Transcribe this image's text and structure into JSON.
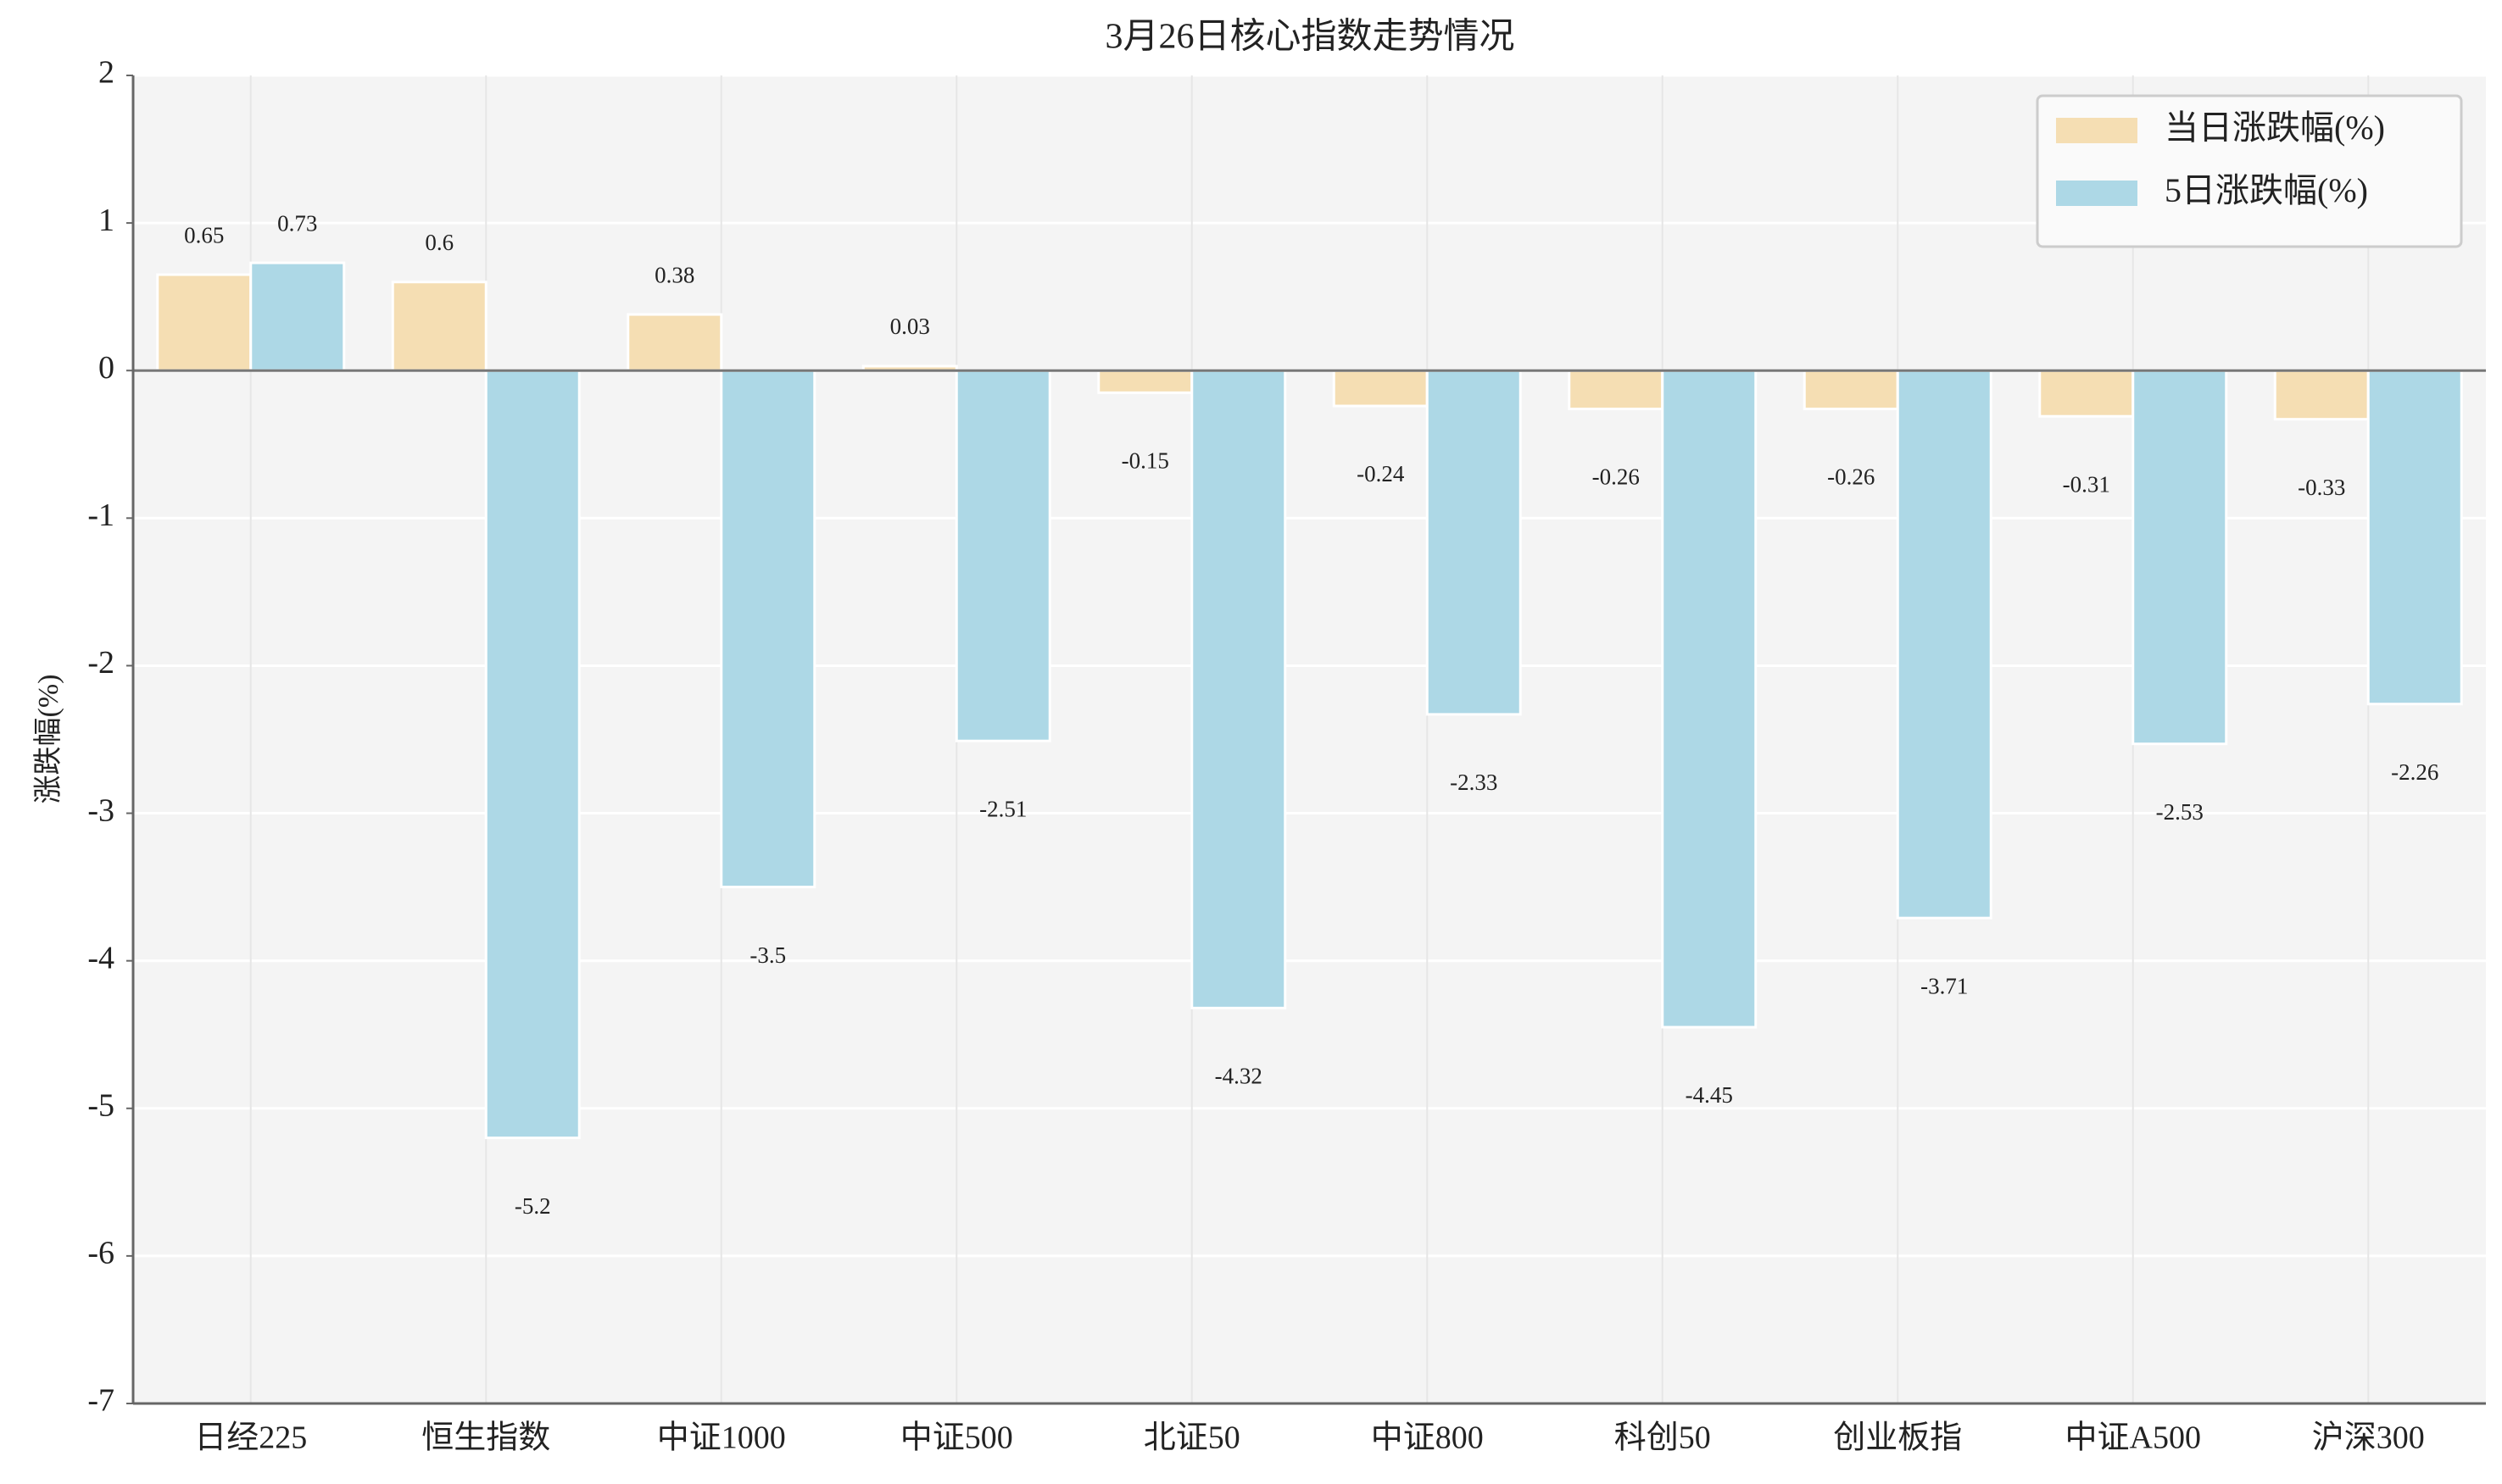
{
  "chart_data": {
    "type": "bar",
    "title": "3月26日核心指数走势情况",
    "y_label": "涨跌幅(%)",
    "categories": [
      "日经225",
      "恒生指数",
      "中证1000",
      "中证500",
      "北证50",
      "中证800",
      "科创50",
      "创业板指",
      "中证A500",
      "沪深300"
    ],
    "series": [
      {
        "name": "当日涨跌幅(%)",
        "color": "#f5deb3",
        "values": [
          0.65,
          0.6,
          0.38,
          0.03,
          -0.15,
          -0.24,
          -0.26,
          -0.26,
          -0.31,
          -0.33
        ]
      },
      {
        "name": "5日涨跌幅(%)",
        "color": "#add8e6",
        "values": [
          0.73,
          -5.2,
          -3.5,
          -2.51,
          -4.32,
          -2.33,
          -4.45,
          -3.71,
          -2.53,
          -2.26
        ]
      }
    ],
    "ylim": [
      -7,
      2
    ],
    "yticks": [
      -7,
      -6,
      -5,
      -4,
      -3,
      -2,
      -1,
      0,
      1,
      2
    ],
    "grid": true,
    "legend": "upper right"
  }
}
